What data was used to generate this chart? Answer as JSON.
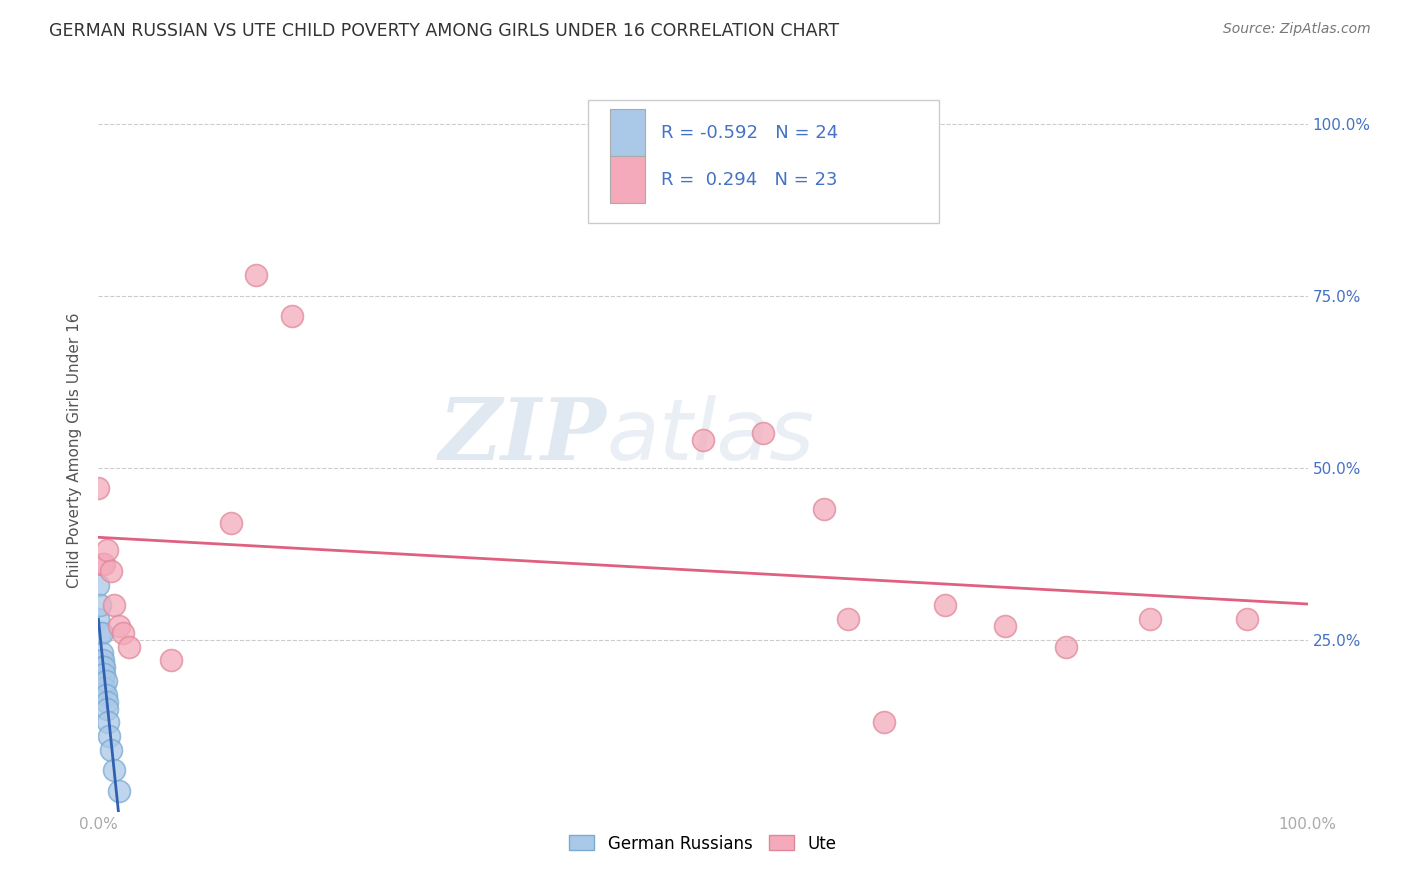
{
  "title": "GERMAN RUSSIAN VS UTE CHILD POVERTY AMONG GIRLS UNDER 16 CORRELATION CHART",
  "source": "Source: ZipAtlas.com",
  "ylabel": "Child Poverty Among Girls Under 16",
  "ytick_labels": [
    "",
    "25.0%",
    "50.0%",
    "75.0%",
    "100.0%"
  ],
  "ytick_values": [
    0,
    0.25,
    0.5,
    0.75,
    1.0
  ],
  "watermark_zip": "ZIP",
  "watermark_atlas": "atlas",
  "german_russian_R": -0.592,
  "german_russian_N": 24,
  "ute_R": 0.294,
  "ute_N": 23,
  "german_russian_color": "#aac8e8",
  "german_russian_edge_color": "#7aaad0",
  "german_russian_line_color": "#3060b0",
  "ute_color": "#f4aabb",
  "ute_edge_color": "#e08898",
  "ute_line_color": "#e06080",
  "german_russian_x": [
    0.0,
    0.0,
    0.001,
    0.001,
    0.002,
    0.002,
    0.003,
    0.003,
    0.003,
    0.004,
    0.004,
    0.004,
    0.005,
    0.005,
    0.005,
    0.006,
    0.006,
    0.007,
    0.007,
    0.008,
    0.009,
    0.01,
    0.013,
    0.017
  ],
  "german_russian_y": [
    0.33,
    0.28,
    0.3,
    0.26,
    0.22,
    0.21,
    0.26,
    0.23,
    0.21,
    0.22,
    0.21,
    0.19,
    0.21,
    0.2,
    0.18,
    0.19,
    0.17,
    0.16,
    0.15,
    0.13,
    0.11,
    0.09,
    0.06,
    0.03
  ],
  "ute_x": [
    0.0,
    0.003,
    0.005,
    0.007,
    0.01,
    0.013,
    0.017,
    0.02,
    0.025,
    0.06,
    0.11,
    0.13,
    0.16,
    0.5,
    0.55,
    0.6,
    0.62,
    0.65,
    0.7,
    0.75,
    0.8,
    0.87,
    0.95
  ],
  "ute_y": [
    0.47,
    0.36,
    0.36,
    0.38,
    0.35,
    0.3,
    0.27,
    0.26,
    0.24,
    0.22,
    0.42,
    0.78,
    0.72,
    0.54,
    0.55,
    0.44,
    0.28,
    0.13,
    0.3,
    0.27,
    0.24,
    0.28,
    0.28
  ],
  "legend_label_gr": "German Russians",
  "legend_label_ute": "Ute",
  "background_color": "#ffffff",
  "grid_color": "#cccccc",
  "title_color": "#333333",
  "axis_label_color": "#555555",
  "tick_color": "#aaaaaa",
  "source_color": "#777777",
  "right_tick_color": "#4472c4"
}
